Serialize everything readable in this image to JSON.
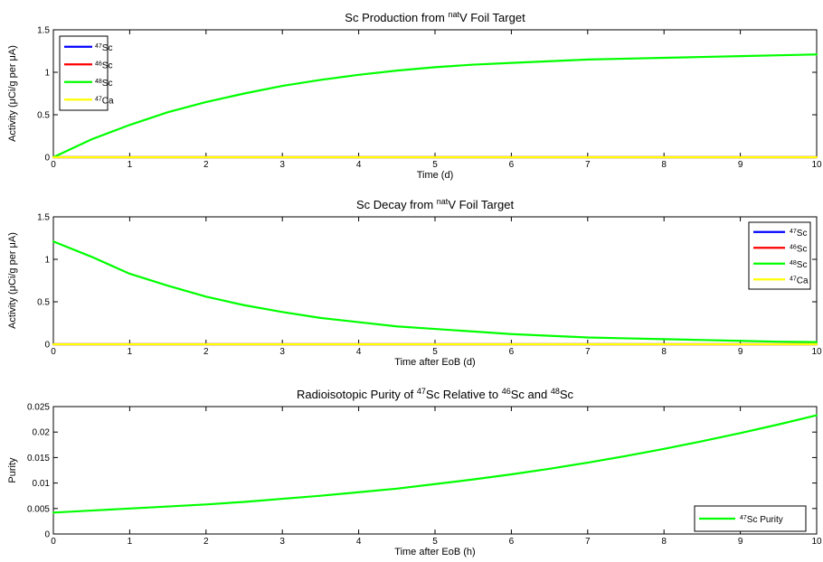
{
  "chart_data": [
    {
      "type": "line",
      "title": "Sc Production from natV Foil Target",
      "title_parts": [
        {
          "text": "Sc Production from ",
          "sup": false
        },
        {
          "text": "nat",
          "sup": true
        },
        {
          "text": "V Foil Target",
          "sup": false
        }
      ],
      "xlabel": "Time (d)",
      "ylabel": "Activity (μCi/g per μA)",
      "xlim": [
        0,
        10
      ],
      "ylim": [
        0,
        1.5
      ],
      "xticks": [
        0,
        1,
        2,
        3,
        4,
        5,
        6,
        7,
        8,
        9,
        10
      ],
      "yticks": [
        0,
        0.5,
        1,
        1.5
      ],
      "ytick_labels": [
        "0",
        "0.5",
        "1",
        "1.5"
      ],
      "legend_position": "top-left",
      "series": [
        {
          "name": "47Sc",
          "label_sup": "47",
          "label_base": "Sc",
          "color": "#0000ff",
          "x": [
            0,
            1,
            2,
            3,
            4,
            5,
            6,
            7,
            8,
            9,
            10
          ],
          "y": [
            0,
            0,
            0,
            0,
            0,
            0,
            0,
            0,
            0,
            0,
            0
          ]
        },
        {
          "name": "46Sc",
          "label_sup": "46",
          "label_base": "Sc",
          "color": "#ff0000",
          "x": [
            0,
            1,
            2,
            3,
            4,
            5,
            6,
            7,
            8,
            9,
            10
          ],
          "y": [
            0,
            0,
            0,
            0,
            0,
            0,
            0,
            0,
            0,
            0,
            0
          ]
        },
        {
          "name": "48Sc",
          "label_sup": "48",
          "label_base": "Sc",
          "color": "#00ff00",
          "x": [
            0,
            0.5,
            1,
            1.5,
            2,
            2.5,
            3,
            3.5,
            4,
            4.5,
            5,
            5.5,
            6,
            6.5,
            7,
            7.5,
            8,
            8.5,
            9,
            9.5,
            10
          ],
          "y": [
            0,
            0.21,
            0.38,
            0.53,
            0.65,
            0.75,
            0.84,
            0.91,
            0.97,
            1.02,
            1.06,
            1.09,
            1.11,
            1.13,
            1.15,
            1.16,
            1.17,
            1.18,
            1.19,
            1.2,
            1.21
          ]
        },
        {
          "name": "47Ca",
          "label_sup": "47",
          "label_base": "Ca",
          "color": "#ffff00",
          "x": [
            0,
            1,
            2,
            3,
            4,
            5,
            6,
            7,
            8,
            9,
            10
          ],
          "y": [
            0,
            0,
            0,
            0,
            0,
            0,
            0,
            0,
            0,
            0,
            0
          ]
        }
      ]
    },
    {
      "type": "line",
      "title": "Sc Decay from natV Foil Target",
      "title_parts": [
        {
          "text": "Sc Decay from ",
          "sup": false
        },
        {
          "text": "nat",
          "sup": true
        },
        {
          "text": "V Foil Target",
          "sup": false
        }
      ],
      "xlabel": "Time after EoB (d)",
      "ylabel": "Activity (μCi/g per μA)",
      "xlim": [
        0,
        10
      ],
      "ylim": [
        0,
        1.5
      ],
      "xticks": [
        0,
        1,
        2,
        3,
        4,
        5,
        6,
        7,
        8,
        9,
        10
      ],
      "yticks": [
        0,
        0.5,
        1,
        1.5
      ],
      "ytick_labels": [
        "0",
        "0.5",
        "1",
        "1.5"
      ],
      "legend_position": "top-right",
      "series": [
        {
          "name": "47Sc",
          "label_sup": "47",
          "label_base": "Sc",
          "color": "#0000ff",
          "x": [
            0,
            1,
            2,
            3,
            4,
            5,
            6,
            7,
            8,
            9,
            10
          ],
          "y": [
            0,
            0,
            0,
            0,
            0,
            0,
            0,
            0,
            0,
            0,
            0
          ]
        },
        {
          "name": "46Sc",
          "label_sup": "46",
          "label_base": "Sc",
          "color": "#ff0000",
          "x": [
            0,
            1,
            2,
            3,
            4,
            5,
            6,
            7,
            8,
            9,
            10
          ],
          "y": [
            0,
            0,
            0,
            0,
            0,
            0,
            0,
            0,
            0,
            0,
            0
          ]
        },
        {
          "name": "48Sc",
          "label_sup": "48",
          "label_base": "Sc",
          "color": "#00ff00",
          "x": [
            0,
            0.5,
            1,
            1.5,
            2,
            2.5,
            3,
            3.5,
            4,
            4.5,
            5,
            5.5,
            6,
            6.5,
            7,
            7.5,
            8,
            8.5,
            9,
            9.5,
            10
          ],
          "y": [
            1.21,
            1.03,
            0.83,
            0.69,
            0.56,
            0.46,
            0.38,
            0.31,
            0.26,
            0.21,
            0.18,
            0.15,
            0.12,
            0.1,
            0.08,
            0.07,
            0.06,
            0.05,
            0.04,
            0.03,
            0.025
          ]
        },
        {
          "name": "47Ca",
          "label_sup": "47",
          "label_base": "Ca",
          "color": "#ffff00",
          "x": [
            0,
            1,
            2,
            3,
            4,
            5,
            6,
            7,
            8,
            9,
            10
          ],
          "y": [
            0,
            0,
            0,
            0,
            0,
            0,
            0,
            0,
            0,
            0,
            0
          ]
        }
      ]
    },
    {
      "type": "line",
      "title": "Radioisotopic Purity of 47Sc Relative to 46Sc and 48Sc",
      "title_parts": [
        {
          "text": "Radioisotopic Purity of ",
          "sup": false
        },
        {
          "text": "47",
          "sup": true
        },
        {
          "text": "Sc Relative to ",
          "sup": false
        },
        {
          "text": "46",
          "sup": true
        },
        {
          "text": "Sc and ",
          "sup": false
        },
        {
          "text": "48",
          "sup": true
        },
        {
          "text": "Sc",
          "sup": false
        }
      ],
      "xlabel": "Time after EoB (h)",
      "ylabel": "Purity",
      "xlim": [
        0,
        10
      ],
      "ylim": [
        0,
        0.025
      ],
      "xticks": [
        0,
        1,
        2,
        3,
        4,
        5,
        6,
        7,
        8,
        9,
        10
      ],
      "yticks": [
        0,
        0.005,
        0.01,
        0.015,
        0.02,
        0.025
      ],
      "ytick_labels": [
        "0",
        "0.005",
        "0.01",
        "0.015",
        "0.02",
        "0.025"
      ],
      "legend_position": "bottom-right",
      "series": [
        {
          "name": "47Sc Purity",
          "label_sup": "47",
          "label_base": "Sc Purity",
          "color": "#00ff00",
          "x": [
            0,
            0.5,
            1,
            1.5,
            2,
            2.5,
            3,
            3.5,
            4,
            4.5,
            5,
            5.5,
            6,
            6.5,
            7,
            7.5,
            8,
            8.5,
            9,
            9.5,
            10
          ],
          "y": [
            0.0042,
            0.0046,
            0.005,
            0.0054,
            0.0058,
            0.0063,
            0.0069,
            0.0075,
            0.0082,
            0.0089,
            0.0098,
            0.0107,
            0.0117,
            0.0128,
            0.014,
            0.0153,
            0.0167,
            0.0182,
            0.0198,
            0.0215,
            0.0233
          ]
        }
      ]
    }
  ]
}
